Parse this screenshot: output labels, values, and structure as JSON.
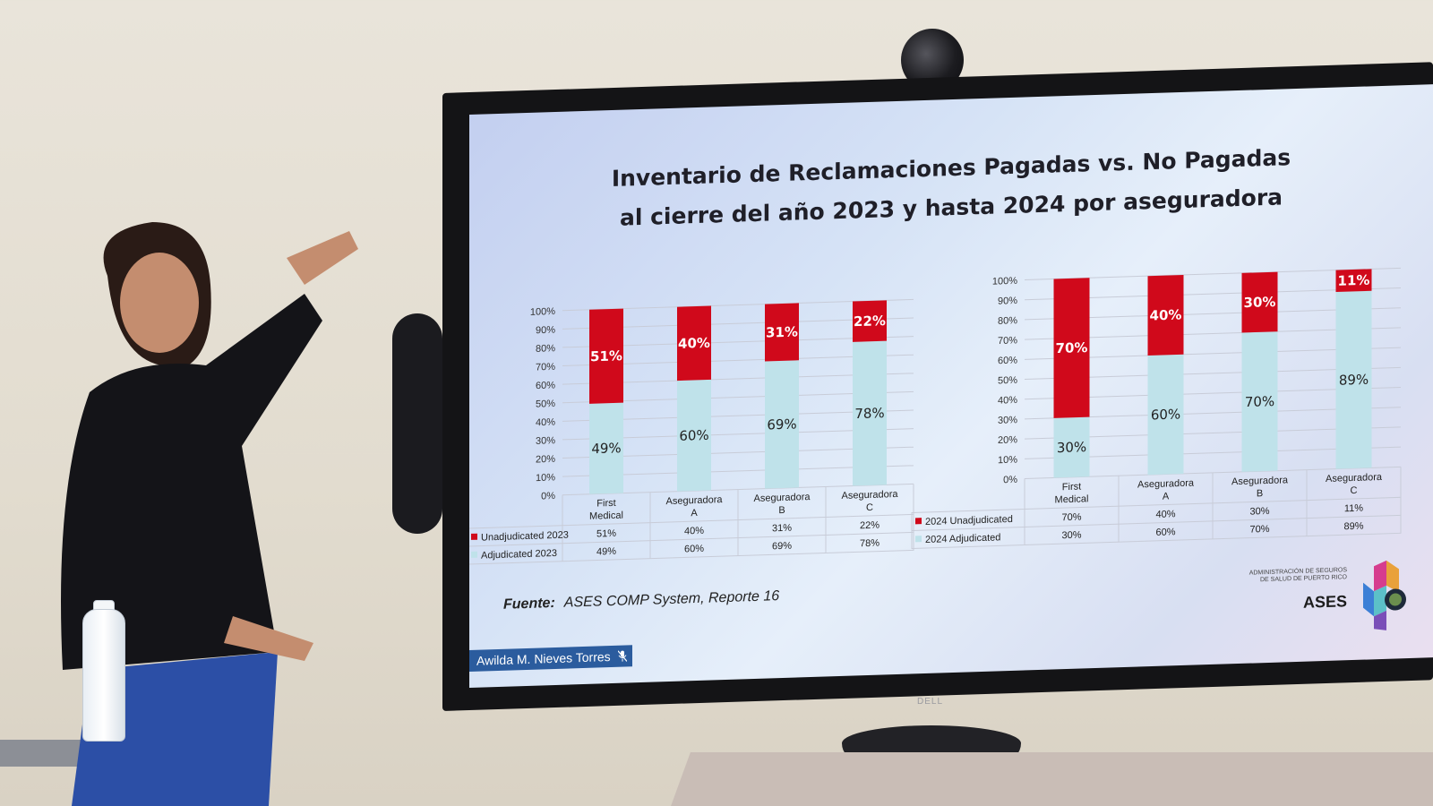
{
  "slide": {
    "title_line1": "Inventario de Reclamaciones Pagadas vs. No Pagadas",
    "title_line2": "al cierre del año 2023 y hasta 2024 por aseguradora",
    "source_label": "Fuente:",
    "source_text": "ASES COMP System, Reporte 16",
    "logo_small_text": "ADMINISTRACIÓN DE SEGUROS DE SALUD DE PUERTO RICO",
    "logo_big_text": "ASES",
    "presenter_name": "Awilda M. Nieves Torres",
    "tv_brand": "DELL"
  },
  "colors": {
    "unadjudicated": "#d0091b",
    "adjudicated": "#bfe2ea",
    "grid": "#c8ccd8"
  },
  "chart_data": [
    {
      "type": "bar",
      "stacked": true,
      "categories": [
        "First Medical",
        "Aseguradora A",
        "Aseguradora B",
        "Aseguradora C"
      ],
      "series": [
        {
          "name": "Unadjudicated 2023",
          "values": [
            51,
            40,
            31,
            22
          ]
        },
        {
          "name": "Adjudicated 2023",
          "values": [
            49,
            60,
            69,
            78
          ]
        }
      ],
      "ylim": [
        0,
        100
      ],
      "yticks": [
        "0%",
        "10%",
        "20%",
        "30%",
        "40%",
        "50%",
        "60%",
        "70%",
        "80%",
        "90%",
        "100%"
      ],
      "grid": true,
      "data_table": true
    },
    {
      "type": "bar",
      "stacked": true,
      "categories": [
        "First Medical",
        "Aseguradora A",
        "Aseguradora B",
        "Aseguradora C"
      ],
      "series": [
        {
          "name": "2024 Unadjudicated",
          "values": [
            70,
            40,
            30,
            11
          ]
        },
        {
          "name": "2024 Adjudicated",
          "values": [
            30,
            60,
            70,
            89
          ]
        }
      ],
      "ylim": [
        0,
        100
      ],
      "yticks": [
        "0%",
        "10%",
        "20%",
        "30%",
        "40%",
        "50%",
        "60%",
        "70%",
        "80%",
        "90%",
        "100%"
      ],
      "grid": true,
      "data_table": true
    }
  ]
}
